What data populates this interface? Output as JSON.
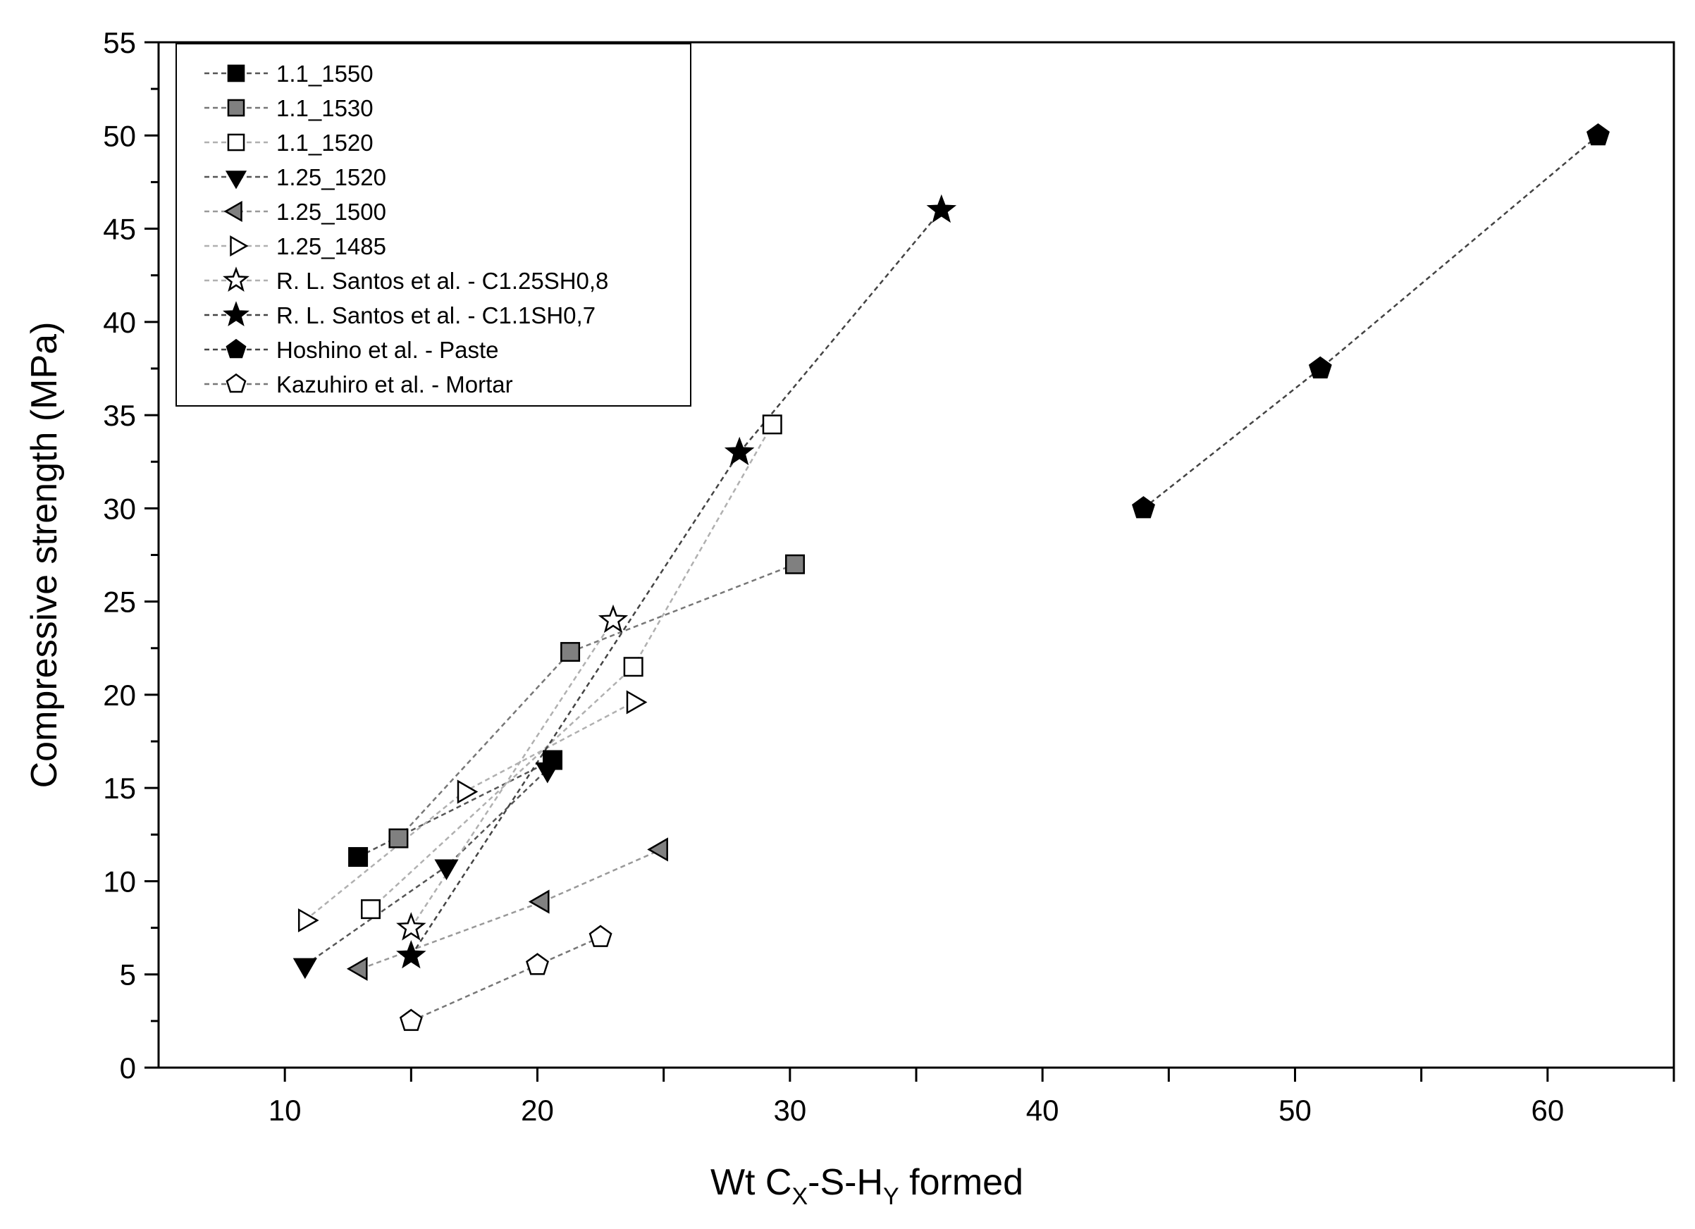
{
  "chart_data": {
    "type": "scatter",
    "title": "",
    "xlabel": "Wt C_X-S-H_Y formed",
    "xlabel_parts": {
      "base1": "Wt C",
      "sub1": "X",
      "mid": "-S-H",
      "sub2": "Y",
      "tail": " formed"
    },
    "ylabel": "Compressive strength (MPa)",
    "xlim": [
      5,
      65
    ],
    "ylim": [
      0,
      55
    ],
    "xticks": [
      10,
      20,
      30,
      40,
      50,
      60
    ],
    "xticks_minor": [
      15,
      25,
      35,
      45,
      55,
      65
    ],
    "yticks": [
      0,
      5,
      10,
      15,
      20,
      25,
      30,
      35,
      40,
      45,
      50,
      55
    ],
    "legend_position": "top-left",
    "series": [
      {
        "name": "1.1_1550",
        "marker": "square",
        "fill": "#000000",
        "line": "#555555",
        "x": [
          12.9,
          20.6
        ],
        "y": [
          11.3,
          16.5
        ]
      },
      {
        "name": "1.1_1530",
        "marker": "square",
        "fill": "#808080",
        "line": "#777777",
        "x": [
          14.5,
          21.3,
          30.2
        ],
        "y": [
          12.3,
          22.3,
          27.0
        ]
      },
      {
        "name": "1.1_1520",
        "marker": "square",
        "fill": "#ffffff",
        "line": "#b0b0b0",
        "x": [
          13.4,
          23.8,
          29.3
        ],
        "y": [
          8.5,
          21.5,
          34.5
        ]
      },
      {
        "name": "1.25_1520",
        "marker": "triangle-down",
        "fill": "#000000",
        "line": "#555555",
        "x": [
          10.8,
          16.4,
          20.4
        ],
        "y": [
          5.5,
          10.8,
          16.0
        ]
      },
      {
        "name": "1.25_1500",
        "marker": "triangle-left",
        "fill": "#808080",
        "line": "#999999",
        "x": [
          13.0,
          20.2,
          24.9
        ],
        "y": [
          5.3,
          8.9,
          11.7
        ]
      },
      {
        "name": "1.25_1485",
        "marker": "triangle-right",
        "fill": "#ffffff",
        "line": "#b0b0b0",
        "x": [
          10.8,
          17.1,
          23.8
        ],
        "y": [
          7.9,
          14.8,
          19.6
        ]
      },
      {
        "name": "R. L. Santos et al. - C1.25SH0,8",
        "marker": "star",
        "fill": "#ffffff",
        "line": "#b0b0b0",
        "x": [
          15.0,
          23.0
        ],
        "y": [
          7.5,
          24.0
        ]
      },
      {
        "name": "R. L. Santos et al. - C1.1SH0,7",
        "marker": "star",
        "fill": "#000000",
        "line": "#444444",
        "x": [
          15.0,
          28.0,
          36.0
        ],
        "y": [
          6.0,
          33.0,
          46.0
        ]
      },
      {
        "name": "Hoshino et al. - Paste",
        "marker": "pentagon",
        "fill": "#000000",
        "line": "#444444",
        "x": [
          44.0,
          51.0,
          62.0
        ],
        "y": [
          30.0,
          37.5,
          50.0
        ]
      },
      {
        "name": "Kazuhiro et al. - Mortar",
        "marker": "pentagon",
        "fill": "#ffffff",
        "line": "#777777",
        "x": [
          15.0,
          20.0,
          22.5
        ],
        "y": [
          2.5,
          5.5,
          7.0
        ]
      }
    ]
  }
}
